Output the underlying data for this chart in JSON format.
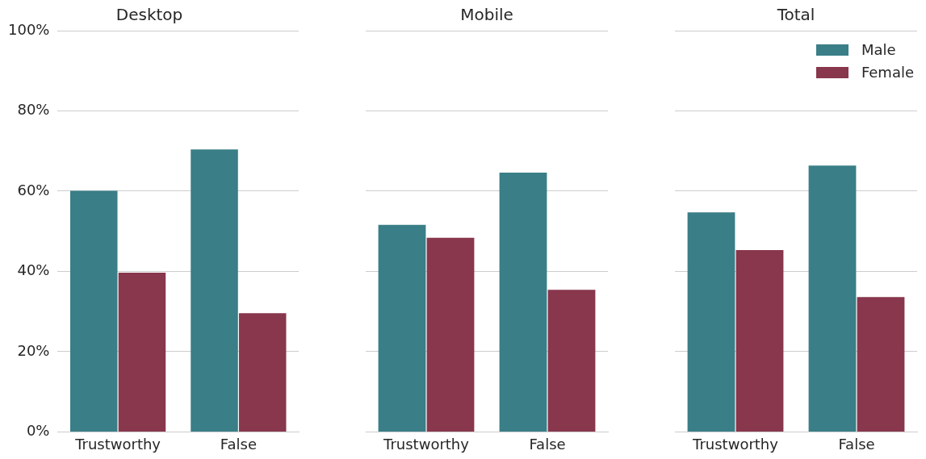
{
  "chart_data": [
    {
      "type": "bar",
      "title": "Desktop",
      "categories": [
        "Trustworthy",
        "False"
      ],
      "series": [
        {
          "color": "#3a7e87",
          "values": [
            60.1,
            70.4
          ]
        },
        {
          "color": "#88374d",
          "values": [
            39.7,
            29.6
          ]
        }
      ],
      "ylim": [
        0,
        100
      ],
      "yticks": [
        {
          "value": 0,
          "label": "0%"
        },
        {
          "value": 20,
          "label": "20%"
        },
        {
          "value": 40,
          "label": "40%"
        },
        {
          "value": 60,
          "label": "60%"
        },
        {
          "value": 80,
          "label": "80%"
        },
        {
          "value": 100,
          "label": "100%"
        }
      ],
      "grid": "y",
      "legend": false
    },
    {
      "type": "bar",
      "title": "Mobile",
      "categories": [
        "Trustworthy",
        "False"
      ],
      "series": [
        {
          "color": "#3a7e87",
          "values": [
            51.6,
            64.6
          ]
        },
        {
          "color": "#88374d",
          "values": [
            48.4,
            35.4
          ]
        }
      ],
      "ylim": [
        0,
        100
      ],
      "yticks": [
        {
          "value": 0,
          "label": null
        },
        {
          "value": 20,
          "label": null
        },
        {
          "value": 40,
          "label": null
        },
        {
          "value": 60,
          "label": null
        },
        {
          "value": 80,
          "label": null
        },
        {
          "value": 100,
          "label": null
        }
      ],
      "grid": "y",
      "legend": false,
      "tick_labels": "x"
    },
    {
      "type": "bar",
      "title": "Total",
      "categories": [
        "Trustworthy",
        "False"
      ],
      "series": [
        {
          "name": "Male",
          "color": "#3a7e87",
          "values": [
            54.7,
            66.4
          ]
        },
        {
          "name": "Female",
          "color": "#88374d",
          "values": [
            45.3,
            33.6
          ]
        }
      ],
      "ylim": [
        0,
        100
      ],
      "yticks": [
        {
          "value": 0,
          "label": null
        },
        {
          "value": 20,
          "label": null
        },
        {
          "value": 40,
          "label": null
        },
        {
          "value": 60,
          "label": null
        },
        {
          "value": 80,
          "label": null
        },
        {
          "value": 100,
          "label": null
        }
      ],
      "grid": "y",
      "legend": "top right",
      "tick_labels": "x"
    }
  ]
}
